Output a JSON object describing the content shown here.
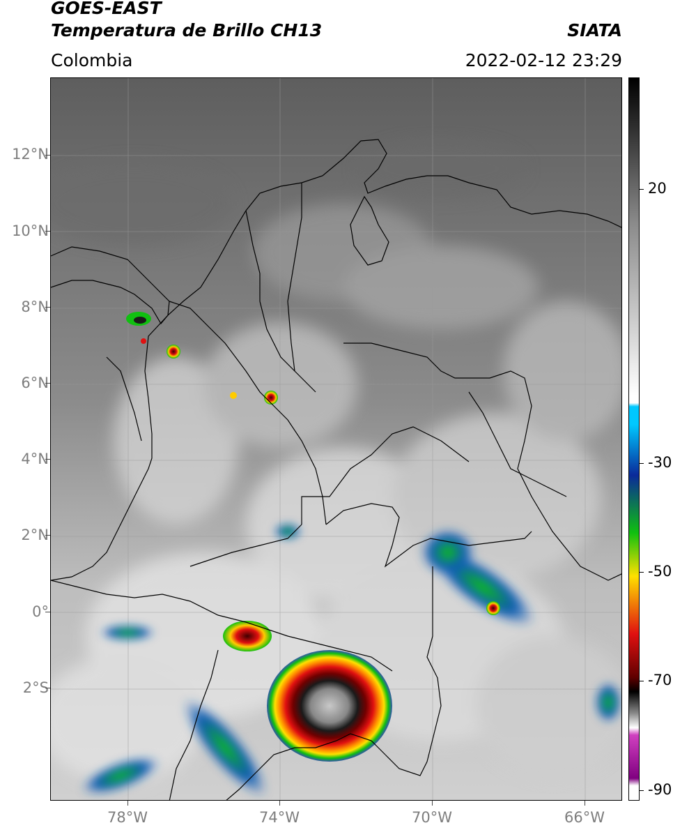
{
  "header": {
    "title_line1": "GOES-EAST",
    "title_line2": "Temperatura de Brillo CH13",
    "region": "Colombia",
    "source": "SIATA",
    "datetime": "2022-02-12 23:29"
  },
  "axes": {
    "lat_labels": [
      "12°N",
      "10°N",
      "8°N",
      "6°N",
      "4°N",
      "2°N",
      "0°",
      "2°S"
    ],
    "lon_labels": [
      "78°W",
      "74°W",
      "70°W",
      "66°W"
    ]
  },
  "colorbar": {
    "labels": [
      "20",
      "-30",
      "-50",
      "-70",
      "-90"
    ],
    "colors": {
      "warm_top": "#000000",
      "gray_mid": "#8a8a8a",
      "white": "#ffffff",
      "cyan": "#00c8ff",
      "blue": "#0a2a9a",
      "green": "#10c010",
      "yellow": "#ffe000",
      "red": "#e01010",
      "dark_red": "#600000",
      "magenta": "#d040c0",
      "purple": "#800080"
    }
  }
}
